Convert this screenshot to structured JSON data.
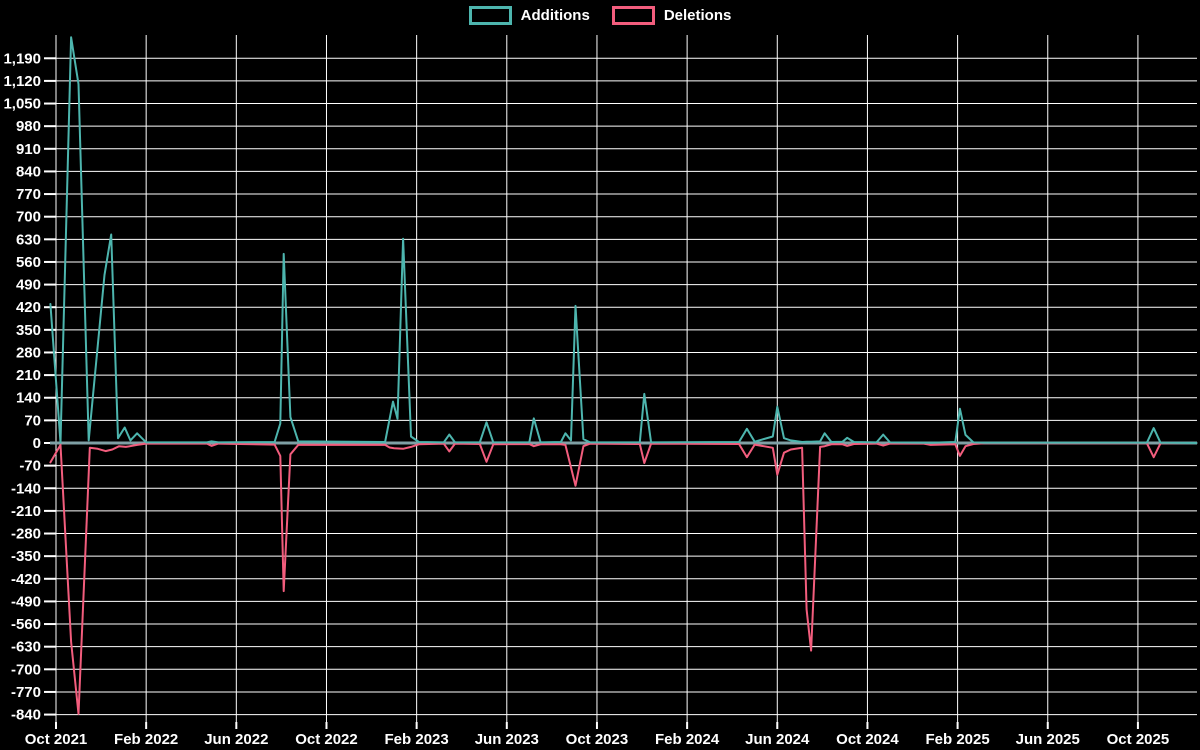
{
  "legend": {
    "additions_label": "Additions",
    "deletions_label": "Deletions"
  },
  "colors": {
    "background": "#000000",
    "grid": "#ffffff",
    "text": "#ffffff",
    "zero_line": "#7fa0a5",
    "additions": "#4db5ae",
    "deletions": "#f25d7d"
  },
  "chart_data": {
    "type": "line",
    "title": "",
    "xlabel": "",
    "ylabel": "",
    "grid": true,
    "legend_position": "top-center",
    "x_axis": {
      "tick_labels": [
        "Oct 2021",
        "Feb 2022",
        "Jun 2022",
        "Oct 2022",
        "Feb 2023",
        "Jun 2023",
        "Oct 2023",
        "Feb 2024",
        "Jun 2024",
        "Oct 2024",
        "Feb 2025",
        "Jun 2025",
        "Oct 2025"
      ],
      "months_between_gridlines": 4,
      "total_months_shown": 50
    },
    "y_axis": {
      "tick_labels": [
        "1,190",
        "1,120",
        "1,050",
        "980",
        "910",
        "840",
        "770",
        "700",
        "630",
        "560",
        "490",
        "420",
        "350",
        "280",
        "210",
        "140",
        "70",
        "0",
        "-70",
        "-140",
        "-210",
        "-280",
        "-350",
        "-420",
        "-490",
        "-560",
        "-630",
        "-700",
        "-770",
        "-840"
      ],
      "tick_values": [
        1190,
        1120,
        1050,
        980,
        910,
        840,
        770,
        700,
        630,
        560,
        490,
        420,
        350,
        280,
        210,
        140,
        70,
        0,
        -70,
        -140,
        -210,
        -280,
        -350,
        -420,
        -490,
        -560,
        -630,
        -700,
        -770,
        -840
      ],
      "step": 70,
      "domain_min": -862,
      "domain_max": 1262
    },
    "series": [
      {
        "name": "Additions",
        "color": "#4db5ae",
        "points_x_months_since_oct_2021_vs_value": [
          [
            -0.25,
            430
          ],
          [
            0.2,
            2
          ],
          [
            0.67,
            1255
          ],
          [
            1.0,
            1110
          ],
          [
            1.45,
            8
          ],
          [
            2.15,
            520
          ],
          [
            2.45,
            645
          ],
          [
            2.75,
            15
          ],
          [
            3.05,
            48
          ],
          [
            3.3,
            8
          ],
          [
            3.6,
            30
          ],
          [
            4.0,
            2
          ],
          [
            6.7,
            2
          ],
          [
            6.9,
            5
          ],
          [
            7.2,
            2
          ],
          [
            9.7,
            3
          ],
          [
            9.95,
            60
          ],
          [
            10.1,
            585
          ],
          [
            10.4,
            80
          ],
          [
            10.75,
            5
          ],
          [
            14.6,
            3
          ],
          [
            14.95,
            128
          ],
          [
            15.15,
            75
          ],
          [
            15.4,
            632
          ],
          [
            15.75,
            20
          ],
          [
            16.1,
            3
          ],
          [
            17.2,
            2
          ],
          [
            17.45,
            26
          ],
          [
            17.7,
            2
          ],
          [
            18.8,
            2
          ],
          [
            19.1,
            64
          ],
          [
            19.4,
            2
          ],
          [
            21.0,
            2
          ],
          [
            21.2,
            76
          ],
          [
            21.5,
            2
          ],
          [
            22.4,
            3
          ],
          [
            22.6,
            30
          ],
          [
            22.85,
            8
          ],
          [
            23.05,
            424
          ],
          [
            23.4,
            12
          ],
          [
            23.7,
            2
          ],
          [
            25.9,
            2
          ],
          [
            26.1,
            152
          ],
          [
            26.4,
            2
          ],
          [
            30.3,
            3
          ],
          [
            30.65,
            44
          ],
          [
            31.0,
            4
          ],
          [
            31.8,
            20
          ],
          [
            32.0,
            112
          ],
          [
            32.3,
            15
          ],
          [
            32.6,
            8
          ],
          [
            33.1,
            3
          ],
          [
            33.3,
            4
          ],
          [
            33.5,
            4
          ],
          [
            33.9,
            5
          ],
          [
            34.1,
            30
          ],
          [
            34.4,
            3
          ],
          [
            34.9,
            4
          ],
          [
            35.1,
            16
          ],
          [
            35.4,
            3
          ],
          [
            36.4,
            2
          ],
          [
            36.7,
            26
          ],
          [
            37.0,
            2
          ],
          [
            38.5,
            1
          ],
          [
            38.8,
            1
          ],
          [
            39.9,
            3
          ],
          [
            40.1,
            106
          ],
          [
            40.35,
            25
          ],
          [
            40.7,
            2
          ],
          [
            41.2,
            1
          ],
          [
            48.4,
            1
          ],
          [
            48.7,
            46
          ],
          [
            49.0,
            1
          ],
          [
            50.6,
            0
          ]
        ]
      },
      {
        "name": "Deletions",
        "color": "#f25d7d",
        "points_x_months_since_oct_2021_vs_value": [
          [
            -0.25,
            -60
          ],
          [
            0.2,
            -6
          ],
          [
            0.67,
            -615
          ],
          [
            1.0,
            -838
          ],
          [
            1.5,
            -15
          ],
          [
            1.85,
            -18
          ],
          [
            2.2,
            -25
          ],
          [
            2.5,
            -20
          ],
          [
            2.8,
            -10
          ],
          [
            3.1,
            -12
          ],
          [
            3.6,
            -6
          ],
          [
            4.0,
            -2
          ],
          [
            6.7,
            -2
          ],
          [
            6.9,
            -9
          ],
          [
            7.2,
            -2
          ],
          [
            9.7,
            -5
          ],
          [
            9.95,
            -40
          ],
          [
            10.1,
            -458
          ],
          [
            10.4,
            -35
          ],
          [
            10.75,
            -6
          ],
          [
            14.6,
            -6
          ],
          [
            14.8,
            -14
          ],
          [
            15.0,
            -16
          ],
          [
            15.4,
            -18
          ],
          [
            15.75,
            -12
          ],
          [
            16.1,
            -4
          ],
          [
            17.2,
            -2
          ],
          [
            17.45,
            -26
          ],
          [
            17.7,
            -2
          ],
          [
            18.8,
            -3
          ],
          [
            19.1,
            -58
          ],
          [
            19.4,
            -4
          ],
          [
            21.0,
            -3
          ],
          [
            21.2,
            -10
          ],
          [
            21.5,
            -4
          ],
          [
            22.4,
            -4
          ],
          [
            22.6,
            -6
          ],
          [
            23.05,
            -132
          ],
          [
            23.4,
            -10
          ],
          [
            23.7,
            -2
          ],
          [
            25.9,
            -3
          ],
          [
            26.1,
            -62
          ],
          [
            26.4,
            -2
          ],
          [
            30.3,
            -3
          ],
          [
            30.65,
            -44
          ],
          [
            31.0,
            -5
          ],
          [
            31.8,
            -15
          ],
          [
            32.0,
            -98
          ],
          [
            32.3,
            -30
          ],
          [
            32.6,
            -20
          ],
          [
            33.1,
            -15
          ],
          [
            33.3,
            -515
          ],
          [
            33.5,
            -642
          ],
          [
            33.9,
            -12
          ],
          [
            34.1,
            -10
          ],
          [
            34.4,
            -4
          ],
          [
            34.9,
            -4
          ],
          [
            35.1,
            -9
          ],
          [
            35.4,
            -3
          ],
          [
            36.4,
            -2
          ],
          [
            36.7,
            -8
          ],
          [
            37.0,
            -2
          ],
          [
            38.5,
            -2
          ],
          [
            38.8,
            -6
          ],
          [
            39.9,
            -4
          ],
          [
            40.1,
            -40
          ],
          [
            40.35,
            -10
          ],
          [
            40.7,
            -3
          ],
          [
            41.2,
            -1
          ],
          [
            48.4,
            -1
          ],
          [
            48.7,
            -44
          ],
          [
            49.0,
            -1
          ],
          [
            50.6,
            0
          ]
        ]
      }
    ]
  }
}
